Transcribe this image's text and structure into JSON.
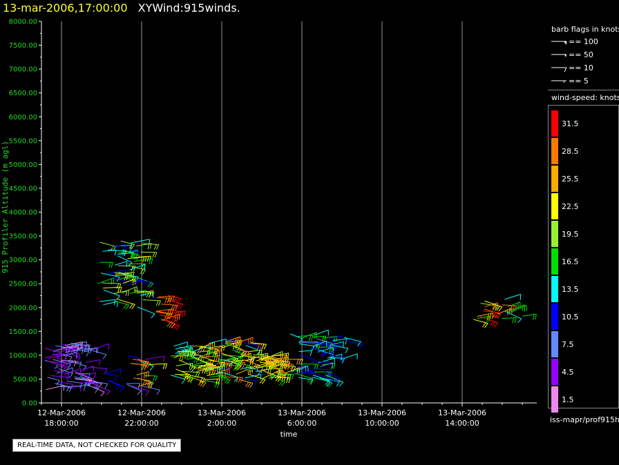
{
  "title": {
    "date": "13-mar-2006,17:00:00",
    "name": "XYWind:915winds."
  },
  "notice": "REAL-TIME DATA, NOT CHECKED FOR QUALITY",
  "chart_data": {
    "type": "wind-barb time-height",
    "xlabel": "time",
    "ylabel": "915 Profiler Altitude (m agl)",
    "ylim": [
      0,
      8000
    ],
    "yticks": [
      "0.00",
      "500.00",
      "1000.00",
      "1500.00",
      "2000.00",
      "2500.00",
      "3000.00",
      "3500.00",
      "4000.00",
      "4500.00",
      "5000.00",
      "5500.00",
      "6000.00",
      "6500.00",
      "7000.00",
      "7500.00",
      "8000.00"
    ],
    "xlim_hours": [
      -1,
      23.5
    ],
    "xticks": [
      {
        "h": 0,
        "l1": "12-Mar-2006",
        "l2": "18:00:00"
      },
      {
        "h": 4,
        "l1": "12-Mar-2006",
        "l2": "22:00:00"
      },
      {
        "h": 8,
        "l1": "13-Mar-2006",
        "l2": "2:00:00"
      },
      {
        "h": 12,
        "l1": "13-Mar-2006",
        "l2": "6:00:00"
      },
      {
        "h": 16,
        "l1": "13-Mar-2006",
        "l2": "10:00:00"
      },
      {
        "h": 20,
        "l1": "13-Mar-2006",
        "l2": "14:00:00"
      }
    ],
    "grid": "vertical lines at major ticks",
    "clusters": [
      {
        "h0": -0.9,
        "h1": 1.6,
        "a0": 250,
        "a1": 1250,
        "s0": 1.5,
        "s1": 9,
        "n": 70
      },
      {
        "h0": 2.0,
        "h1": 2.4,
        "a0": 450,
        "a1": 750,
        "s0": 9,
        "s1": 13,
        "n": 4
      },
      {
        "h0": 3.2,
        "h1": 4.6,
        "a0": 300,
        "a1": 1000,
        "s0": 4,
        "s1": 31,
        "n": 16
      },
      {
        "h0": 1.8,
        "h1": 4.1,
        "a0": 2000,
        "a1": 3400,
        "s0": 10,
        "s1": 22,
        "n": 55
      },
      {
        "h0": 4.6,
        "h1": 5.4,
        "a0": 1700,
        "a1": 2300,
        "s0": 26,
        "s1": 32,
        "n": 14
      },
      {
        "h0": 5.4,
        "h1": 7.1,
        "a0": 550,
        "a1": 1200,
        "s0": 13,
        "s1": 27,
        "n": 45
      },
      {
        "h0": 7.1,
        "h1": 9.5,
        "a0": 450,
        "a1": 1300,
        "s0": 10,
        "s1": 29,
        "n": 60
      },
      {
        "h0": 9.5,
        "h1": 11.2,
        "a0": 500,
        "a1": 1000,
        "s0": 16,
        "s1": 30,
        "n": 40
      },
      {
        "h0": 11.4,
        "h1": 13.2,
        "a0": 500,
        "a1": 1500,
        "s0": 7,
        "s1": 17,
        "n": 45
      },
      {
        "h0": 13.2,
        "h1": 14.2,
        "a0": 900,
        "a1": 1400,
        "s0": 11,
        "s1": 15,
        "n": 10
      },
      {
        "h0": 20.5,
        "h1": 22.0,
        "a0": 1750,
        "a1": 2150,
        "s0": 10,
        "s1": 32,
        "n": 12
      },
      {
        "h0": 22.0,
        "h1": 23.0,
        "a0": 1800,
        "a1": 2200,
        "s0": 14,
        "s1": 18,
        "n": 6
      }
    ]
  },
  "legend": {
    "barb_title": "barb flags in knots",
    "barbs": [
      "== 100",
      "== 50",
      "== 10",
      "== 5"
    ],
    "speed_title": "wind-speed: knots",
    "speeds": [
      "31.5",
      "28.5",
      "25.5",
      "22.5",
      "19.5",
      "16.5",
      "13.5",
      "10.5",
      "7.5",
      "4.5",
      "1.5"
    ],
    "colors": [
      "#ff0000",
      "#ff7700",
      "#ffaa00",
      "#ffff00",
      "#99ee33",
      "#00dd00",
      "#00ffff",
      "#0000ff",
      "#6688ff",
      "#9900ff",
      "#ee88ee"
    ],
    "source": "iss-mapr/prof915h"
  }
}
